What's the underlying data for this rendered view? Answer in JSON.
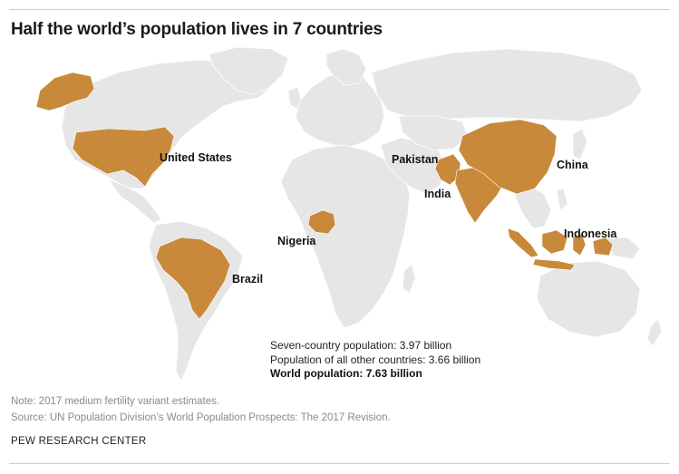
{
  "title": "Half the world’s population lives in 7 countries",
  "highlighted_countries": [
    {
      "key": "usa",
      "label": "United States"
    },
    {
      "key": "brazil",
      "label": "Brazil"
    },
    {
      "key": "nigeria",
      "label": "Nigeria"
    },
    {
      "key": "pakistan",
      "label": "Pakistan"
    },
    {
      "key": "india",
      "label": "India"
    },
    {
      "key": "china",
      "label": "China"
    },
    {
      "key": "indonesia",
      "label": "Indonesia"
    }
  ],
  "stats": {
    "seven_country": "Seven-country population: 3.97 billion",
    "other_countries": "Population of all other countries: 3.66 billion",
    "world": "World population: 7.63 billion"
  },
  "notes": {
    "note": "Note: 2017 medium fertility variant estimates.",
    "source": "Source: UN Population Division’s World Population Prospects: The 2017 Revision."
  },
  "brand": "PEW RESEARCH CENTER",
  "colors": {
    "highlight": "#c8893a",
    "land": "#e6e6e6",
    "background": "#ffffff"
  }
}
